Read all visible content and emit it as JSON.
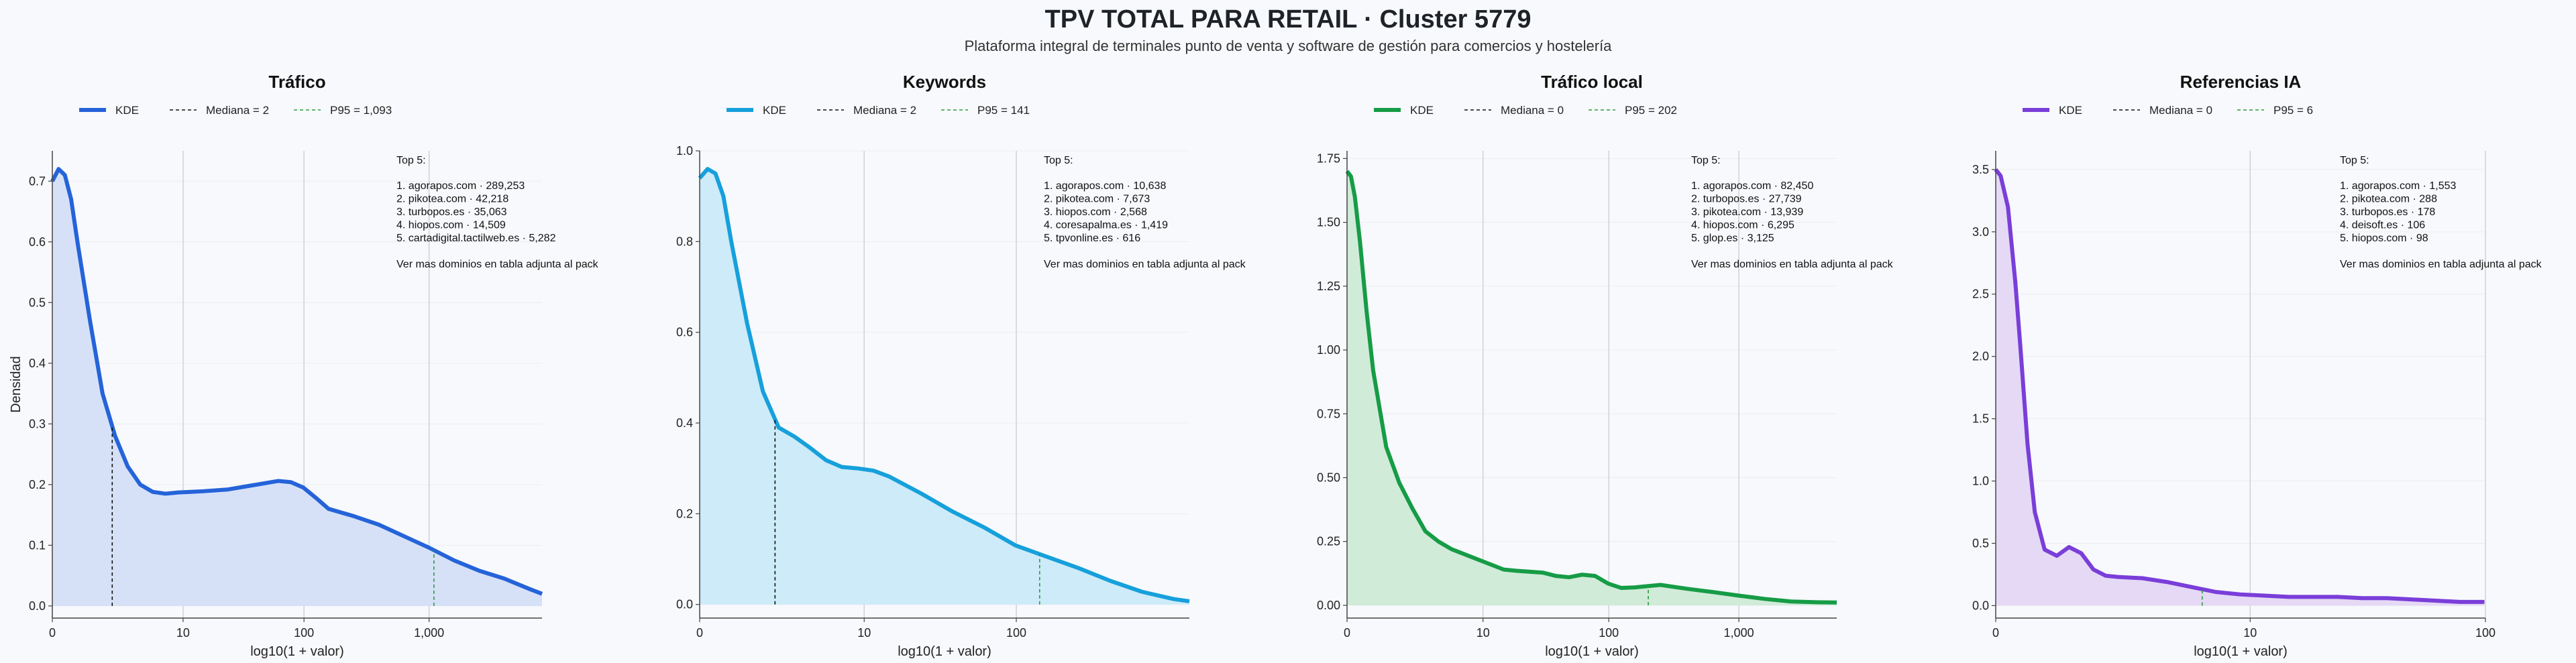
{
  "title": "TPV TOTAL PARA RETAIL · Cluster 5779",
  "subtitle": "Plataforma integral de terminales punto de venta y software de gestión para comercios y hostelería",
  "shared": {
    "ylabel": "Densidad",
    "xlabel": "log10(1 + valor)",
    "kde_label": "KDE",
    "top_header": "Top 5:",
    "top_footer": "Ver mas dominios en tabla adjunta al pack"
  },
  "chart_data": [
    {
      "type": "area",
      "title": "Tráfico",
      "color": "#2563d9",
      "fill": "#d6e1f8",
      "median_label": "Mediana = 2",
      "p95_label": "P95 = 1,093",
      "xmax": 3.9,
      "ylim": [
        -0.02,
        0.75
      ],
      "xticks": [
        0,
        1.0414,
        2.0043,
        3.0004
      ],
      "xtick_labels": [
        "0",
        "10",
        "100",
        "1,000"
      ],
      "yticks": [
        0,
        0.1,
        0.2,
        0.3,
        0.4,
        0.5,
        0.6,
        0.7
      ],
      "ytick_labels": [
        "0.0",
        "0.1",
        "0.2",
        "0.3",
        "0.4",
        "0.5",
        "0.6",
        "0.7"
      ],
      "median_x": 0.477,
      "p95_x": 3.039,
      "x": [
        0,
        0.05,
        0.1,
        0.15,
        0.2,
        0.3,
        0.4,
        0.5,
        0.6,
        0.7,
        0.8,
        0.9,
        1.0,
        1.1,
        1.2,
        1.4,
        1.6,
        1.8,
        1.9,
        2.0,
        2.1,
        2.2,
        2.4,
        2.6,
        2.8,
        3.0,
        3.2,
        3.4,
        3.6,
        3.8,
        3.9
      ],
      "y": [
        0.7,
        0.72,
        0.71,
        0.67,
        0.6,
        0.47,
        0.35,
        0.28,
        0.23,
        0.2,
        0.188,
        0.185,
        0.187,
        0.188,
        0.189,
        0.192,
        0.199,
        0.206,
        0.204,
        0.195,
        0.178,
        0.16,
        0.148,
        0.134,
        0.115,
        0.096,
        0.075,
        0.058,
        0.045,
        0.028,
        0.02
      ],
      "top5": [
        "1. agorapos.com · 289,253",
        "2. pikotea.com · 42,218",
        "3. turbopos.es · 35,063",
        "4. hiopos.com · 14,509",
        "5. cartadigital.tactilweb.es · 5,282"
      ]
    },
    {
      "type": "area",
      "title": "Keywords",
      "color": "#16a0dc",
      "fill": "#cdebf8",
      "median_label": "Mediana = 2",
      "p95_label": "P95 = 141",
      "xmax": 3.1,
      "ylim": [
        -0.03,
        1.0
      ],
      "xticks": [
        0,
        1.0414,
        2.0043
      ],
      "xtick_labels": [
        "0",
        "10",
        "100"
      ],
      "yticks": [
        0,
        0.2,
        0.4,
        0.6,
        0.8,
        1.0
      ],
      "ytick_labels": [
        "0.0",
        "0.2",
        "0.4",
        "0.6",
        "0.8",
        "1.0"
      ],
      "median_x": 0.477,
      "p95_x": 2.152,
      "x": [
        0,
        0.05,
        0.1,
        0.15,
        0.2,
        0.3,
        0.4,
        0.5,
        0.6,
        0.7,
        0.8,
        0.9,
        1.0,
        1.1,
        1.2,
        1.4,
        1.6,
        1.8,
        2.0,
        2.2,
        2.4,
        2.6,
        2.8,
        3.0,
        3.1
      ],
      "y": [
        0.94,
        0.96,
        0.95,
        0.9,
        0.8,
        0.62,
        0.47,
        0.39,
        0.37,
        0.345,
        0.318,
        0.303,
        0.3,
        0.295,
        0.282,
        0.245,
        0.205,
        0.17,
        0.13,
        0.105,
        0.08,
        0.052,
        0.028,
        0.012,
        0.007
      ],
      "top5": [
        "1. agorapos.com · 10,638",
        "2. pikotea.com · 7,673",
        "3. hiopos.com · 2,568",
        "4. coresapalma.es · 1,419",
        "5. tpvonline.es · 616"
      ]
    },
    {
      "type": "area",
      "title": "Tráfico local",
      "color": "#169c46",
      "fill": "#d1ebd9",
      "median_label": "Mediana = 0",
      "p95_label": "P95 = 202",
      "xmax": 3.75,
      "ylim": [
        -0.05,
        1.78
      ],
      "xticks": [
        0,
        1.0414,
        2.0043,
        3.0004
      ],
      "xtick_labels": [
        "0",
        "10",
        "100",
        "1,000"
      ],
      "yticks": [
        0,
        0.25,
        0.5,
        0.75,
        1.0,
        1.25,
        1.5,
        1.75
      ],
      "ytick_labels": [
        "0.00",
        "0.25",
        "0.50",
        "0.75",
        "1.00",
        "1.25",
        "1.50",
        "1.75"
      ],
      "median_x": 0,
      "p95_x": 2.307,
      "x": [
        0,
        0.03,
        0.06,
        0.1,
        0.15,
        0.2,
        0.3,
        0.4,
        0.5,
        0.6,
        0.7,
        0.8,
        0.9,
        1.0,
        1.1,
        1.2,
        1.3,
        1.5,
        1.6,
        1.7,
        1.8,
        1.9,
        2.0,
        2.1,
        2.2,
        2.4,
        2.6,
        2.8,
        3.0,
        3.2,
        3.4,
        3.6,
        3.75
      ],
      "y": [
        1.7,
        1.68,
        1.6,
        1.42,
        1.15,
        0.92,
        0.62,
        0.48,
        0.38,
        0.29,
        0.25,
        0.22,
        0.2,
        0.18,
        0.16,
        0.14,
        0.135,
        0.128,
        0.115,
        0.11,
        0.12,
        0.115,
        0.085,
        0.068,
        0.07,
        0.08,
        0.065,
        0.052,
        0.038,
        0.025,
        0.015,
        0.012,
        0.011
      ],
      "top5": [
        "1. agorapos.com · 82,450",
        "2. turbopos.es · 27,739",
        "3. pikotea.com · 13,939",
        "4. hiopos.com · 6,295",
        "5. glop.es · 3,125"
      ]
    },
    {
      "type": "area",
      "title": "Referencias IA",
      "color": "#7a3ed9",
      "fill": "#e5d9f6",
      "median_label": "Mediana = 0",
      "p95_label": "P95 = 6",
      "xmax": 2.0043,
      "ylim": [
        -0.1,
        3.65
      ],
      "xticks": [
        0,
        1.0414,
        2.0043
      ],
      "xtick_labels": [
        "0",
        "10",
        "100"
      ],
      "yticks": [
        0,
        0.5,
        1.0,
        1.5,
        2.0,
        2.5,
        3.0,
        3.5
      ],
      "ytick_labels": [
        "0.0",
        "0.5",
        "1.0",
        "1.5",
        "2.0",
        "2.5",
        "3.0",
        "3.5"
      ],
      "median_x": 0,
      "p95_x": 0.845,
      "x": [
        0,
        0.02,
        0.05,
        0.08,
        0.1,
        0.13,
        0.16,
        0.2,
        0.25,
        0.3,
        0.35,
        0.4,
        0.45,
        0.5,
        0.6,
        0.7,
        0.8,
        0.9,
        1.0,
        1.1,
        1.2,
        1.3,
        1.4,
        1.5,
        1.6,
        1.7,
        1.8,
        1.9,
        2.0
      ],
      "y": [
        3.5,
        3.45,
        3.2,
        2.6,
        2.1,
        1.3,
        0.75,
        0.45,
        0.4,
        0.47,
        0.42,
        0.29,
        0.24,
        0.23,
        0.22,
        0.19,
        0.15,
        0.11,
        0.09,
        0.08,
        0.07,
        0.07,
        0.07,
        0.06,
        0.06,
        0.05,
        0.04,
        0.03,
        0.03
      ],
      "top5": [
        "1. agorapos.com · 1,553",
        "2. pikotea.com · 288",
        "3. turbopos.es · 178",
        "4. deisoft.es · 106",
        "5. hiopos.com · 98"
      ]
    }
  ]
}
